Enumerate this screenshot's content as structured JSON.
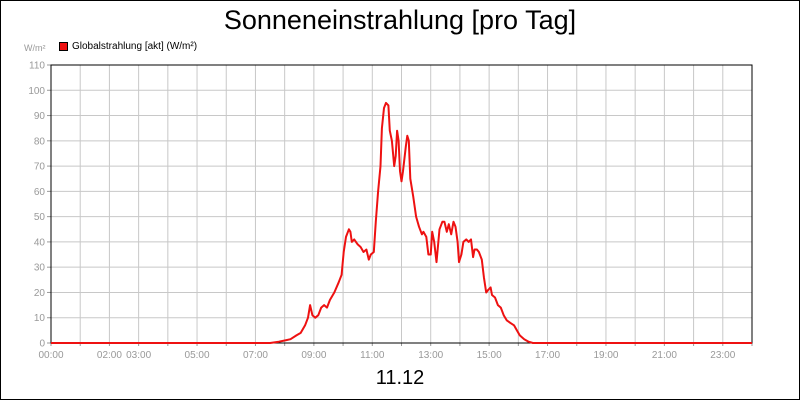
{
  "chart_data": {
    "type": "line",
    "title": "Sonneneinstrahlung [pro Tag]",
    "ylabel": "W/m²",
    "xlabel": "",
    "date": "11.12",
    "ylim": [
      0,
      110
    ],
    "xlim": [
      0,
      24
    ],
    "y_ticks": [
      "0",
      "10",
      "20",
      "30",
      "40",
      "50",
      "60",
      "70",
      "80",
      "90",
      "100",
      "110"
    ],
    "x_ticks": [
      {
        "t": 0,
        "label": "00:00"
      },
      {
        "t": 2,
        "label": "02:00"
      },
      {
        "t": 3,
        "label": "03:00"
      },
      {
        "t": 5,
        "label": "05:00"
      },
      {
        "t": 7,
        "label": "07:00"
      },
      {
        "t": 9,
        "label": "09:00"
      },
      {
        "t": 11,
        "label": "11:00"
      },
      {
        "t": 13,
        "label": "13:00"
      },
      {
        "t": 15,
        "label": "15:00"
      },
      {
        "t": 17,
        "label": "17:00"
      },
      {
        "t": 19,
        "label": "19:00"
      },
      {
        "t": 21,
        "label": "21:00"
      },
      {
        "t": 23,
        "label": "23:00"
      }
    ],
    "grid": true,
    "legend_position": "top-left",
    "series": [
      {
        "name": "Globalstrahlung [akt] (W/m²)",
        "color": "#ee1111",
        "points": [
          [
            0,
            0
          ],
          [
            7.5,
            0
          ],
          [
            7.8,
            0.5
          ],
          [
            8.0,
            1
          ],
          [
            8.2,
            1.5
          ],
          [
            8.4,
            3
          ],
          [
            8.55,
            4
          ],
          [
            8.7,
            7
          ],
          [
            8.8,
            10
          ],
          [
            8.87,
            15
          ],
          [
            8.95,
            11
          ],
          [
            9.05,
            10
          ],
          [
            9.15,
            11
          ],
          [
            9.25,
            14
          ],
          [
            9.35,
            15
          ],
          [
            9.45,
            14
          ],
          [
            9.55,
            17
          ],
          [
            9.7,
            20
          ],
          [
            9.85,
            24
          ],
          [
            9.95,
            27
          ],
          [
            10.02,
            36
          ],
          [
            10.1,
            42
          ],
          [
            10.2,
            45
          ],
          [
            10.25,
            44
          ],
          [
            10.3,
            40
          ],
          [
            10.38,
            41
          ],
          [
            10.5,
            39
          ],
          [
            10.6,
            38
          ],
          [
            10.7,
            36
          ],
          [
            10.8,
            37
          ],
          [
            10.88,
            33
          ],
          [
            10.95,
            35
          ],
          [
            11.05,
            36
          ],
          [
            11.12,
            48
          ],
          [
            11.2,
            60
          ],
          [
            11.28,
            70
          ],
          [
            11.33,
            85
          ],
          [
            11.4,
            93
          ],
          [
            11.47,
            95
          ],
          [
            11.55,
            94
          ],
          [
            11.6,
            84
          ],
          [
            11.67,
            80
          ],
          [
            11.75,
            70
          ],
          [
            11.8,
            74
          ],
          [
            11.85,
            84
          ],
          [
            11.9,
            80
          ],
          [
            11.95,
            68
          ],
          [
            12.0,
            64
          ],
          [
            12.05,
            68
          ],
          [
            12.15,
            78
          ],
          [
            12.2,
            82
          ],
          [
            12.25,
            80
          ],
          [
            12.3,
            65
          ],
          [
            12.4,
            58
          ],
          [
            12.5,
            50
          ],
          [
            12.6,
            46
          ],
          [
            12.7,
            43
          ],
          [
            12.75,
            44
          ],
          [
            12.85,
            42
          ],
          [
            12.92,
            35
          ],
          [
            13.0,
            35
          ],
          [
            13.05,
            44
          ],
          [
            13.12,
            40
          ],
          [
            13.2,
            32
          ],
          [
            13.3,
            45
          ],
          [
            13.4,
            48
          ],
          [
            13.47,
            48
          ],
          [
            13.55,
            44
          ],
          [
            13.62,
            47
          ],
          [
            13.7,
            43
          ],
          [
            13.78,
            48
          ],
          [
            13.85,
            46
          ],
          [
            13.92,
            40
          ],
          [
            13.97,
            32
          ],
          [
            14.05,
            35
          ],
          [
            14.12,
            40
          ],
          [
            14.22,
            41
          ],
          [
            14.3,
            40
          ],
          [
            14.38,
            41
          ],
          [
            14.45,
            34
          ],
          [
            14.5,
            37
          ],
          [
            14.58,
            37
          ],
          [
            14.65,
            36
          ],
          [
            14.75,
            33
          ],
          [
            14.82,
            26
          ],
          [
            14.9,
            20
          ],
          [
            14.97,
            21
          ],
          [
            15.05,
            22
          ],
          [
            15.1,
            19
          ],
          [
            15.2,
            18
          ],
          [
            15.3,
            15
          ],
          [
            15.4,
            14
          ],
          [
            15.5,
            11
          ],
          [
            15.6,
            9
          ],
          [
            15.72,
            8
          ],
          [
            15.85,
            7
          ],
          [
            15.95,
            5
          ],
          [
            16.05,
            3
          ],
          [
            16.2,
            1.5
          ],
          [
            16.35,
            0.5
          ],
          [
            16.5,
            0
          ],
          [
            24,
            0
          ]
        ]
      }
    ]
  }
}
